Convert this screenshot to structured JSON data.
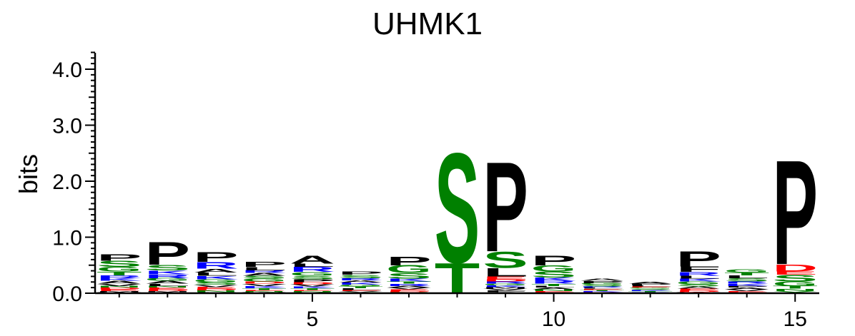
{
  "chart_data": {
    "type": "sequence-logo",
    "title": "UHMK1",
    "ylabel": "bits",
    "xlabel": "",
    "ylim": [
      0,
      4.3
    ],
    "y_ticks": [
      "0.0",
      "1.0",
      "2.0",
      "3.0",
      "4.0"
    ],
    "y_tick_values": [
      0,
      1,
      2,
      3,
      4
    ],
    "x_ticks": [
      "5",
      "10",
      "15"
    ],
    "x_tick_values": [
      5,
      10,
      15
    ],
    "x_range": [
      0.5,
      15.5
    ],
    "colors": {
      "P": "#000000",
      "A": "#000000",
      "L": "#000000",
      "F": "#000000",
      "V": "#000000",
      "M": "#000000",
      "I": "#000000",
      "W": "#000000",
      "S": "#008000",
      "T": "#008000",
      "G": "#008000",
      "Y": "#008000",
      "C": "#008000",
      "Q": "#008000",
      "N": "#008000",
      "R": "#0000ff",
      "K": "#0000ff",
      "H": "#0000ff",
      "D": "#ff0000",
      "E": "#ff0000"
    },
    "positions": [
      {
        "pos": 1,
        "letters": [
          [
            "W",
            0.02
          ],
          [
            "M",
            0.02
          ],
          [
            "E",
            0.03
          ],
          [
            "D",
            0.03
          ],
          [
            "N",
            0.03
          ],
          [
            "V",
            0.04
          ],
          [
            "A",
            0.05
          ],
          [
            "K",
            0.05
          ],
          [
            "R",
            0.05
          ],
          [
            "T",
            0.07
          ],
          [
            "G",
            0.08
          ],
          [
            "S",
            0.11
          ],
          [
            "P",
            0.12
          ]
        ]
      },
      {
        "pos": 2,
        "letters": [
          [
            "I",
            0.02
          ],
          [
            "M",
            0.02
          ],
          [
            "D",
            0.03
          ],
          [
            "E",
            0.03
          ],
          [
            "N",
            0.03
          ],
          [
            "L",
            0.04
          ],
          [
            "A",
            0.05
          ],
          [
            "G",
            0.05
          ],
          [
            "R",
            0.07
          ],
          [
            "K",
            0.07
          ],
          [
            "S",
            0.1
          ],
          [
            "P",
            0.42
          ]
        ]
      },
      {
        "pos": 3,
        "letters": [
          [
            "F",
            0.02
          ],
          [
            "N",
            0.03
          ],
          [
            "D",
            0.03
          ],
          [
            "E",
            0.03
          ],
          [
            "V",
            0.04
          ],
          [
            "S",
            0.05
          ],
          [
            "G",
            0.05
          ],
          [
            "K",
            0.06
          ],
          [
            "L",
            0.06
          ],
          [
            "A",
            0.07
          ],
          [
            "R",
            0.12
          ],
          [
            "P",
            0.18
          ]
        ]
      },
      {
        "pos": 4,
        "letters": [
          [
            "W",
            0.02
          ],
          [
            "N",
            0.02
          ],
          [
            "E",
            0.02
          ],
          [
            "T",
            0.03
          ],
          [
            "K",
            0.04
          ],
          [
            "V",
            0.04
          ],
          [
            "D",
            0.04
          ],
          [
            "G",
            0.05
          ],
          [
            "S",
            0.05
          ],
          [
            "A",
            0.05
          ],
          [
            "R",
            0.05
          ],
          [
            "L",
            0.06
          ],
          [
            "P",
            0.09
          ]
        ]
      },
      {
        "pos": 5,
        "letters": [
          [
            "Y",
            0.02
          ],
          [
            "N",
            0.02
          ],
          [
            "E",
            0.02
          ],
          [
            "T",
            0.03
          ],
          [
            "K",
            0.03
          ],
          [
            "V",
            0.04
          ],
          [
            "D",
            0.04
          ],
          [
            "P",
            0.05
          ],
          [
            "S",
            0.06
          ],
          [
            "G",
            0.07
          ],
          [
            "R",
            0.09
          ],
          [
            "L",
            0.06
          ],
          [
            "A",
            0.14
          ]
        ]
      },
      {
        "pos": 6,
        "letters": [
          [
            "Y",
            0.02
          ],
          [
            "V",
            0.02
          ],
          [
            "E",
            0.02
          ],
          [
            "L",
            0.03
          ],
          [
            "T",
            0.03
          ],
          [
            "G",
            0.03
          ],
          [
            "K",
            0.04
          ],
          [
            "A",
            0.04
          ],
          [
            "R",
            0.04
          ],
          [
            "S",
            0.06
          ],
          [
            "P",
            0.06
          ]
        ]
      },
      {
        "pos": 7,
        "letters": [
          [
            "N",
            0.02
          ],
          [
            "D",
            0.02
          ],
          [
            "E",
            0.03
          ],
          [
            "V",
            0.03
          ],
          [
            "A",
            0.03
          ],
          [
            "R",
            0.04
          ],
          [
            "T",
            0.04
          ],
          [
            "K",
            0.05
          ],
          [
            "S",
            0.1
          ],
          [
            "G",
            0.14
          ],
          [
            "P",
            0.16
          ]
        ]
      },
      {
        "pos": 8,
        "letters": [
          [
            "T",
            0.55
          ],
          [
            "S",
            2.02
          ]
        ]
      },
      {
        "pos": 9,
        "letters": [
          [
            "A",
            0.02
          ],
          [
            "F",
            0.03
          ],
          [
            "V",
            0.03
          ],
          [
            "M",
            0.03
          ],
          [
            "K",
            0.03
          ],
          [
            "G",
            0.03
          ],
          [
            "R",
            0.04
          ],
          [
            "D",
            0.04
          ],
          [
            "E",
            0.05
          ],
          [
            "L",
            0.15
          ],
          [
            "S",
            0.3
          ],
          [
            "P",
            1.65
          ]
        ]
      },
      {
        "pos": 10,
        "letters": [
          [
            "D",
            0.02
          ],
          [
            "E",
            0.02
          ],
          [
            "N",
            0.03
          ],
          [
            "A",
            0.03
          ],
          [
            "L",
            0.03
          ],
          [
            "T",
            0.04
          ],
          [
            "R",
            0.05
          ],
          [
            "K",
            0.06
          ],
          [
            "S",
            0.11
          ],
          [
            "G",
            0.11
          ],
          [
            "P",
            0.18
          ]
        ]
      },
      {
        "pos": 11,
        "letters": [
          [
            "D",
            0.02
          ],
          [
            "K",
            0.02
          ],
          [
            "T",
            0.02
          ],
          [
            "E",
            0.02
          ],
          [
            "L",
            0.02
          ],
          [
            "R",
            0.02
          ],
          [
            "S",
            0.03
          ],
          [
            "G",
            0.03
          ],
          [
            "P",
            0.04
          ],
          [
            "A",
            0.04
          ]
        ]
      },
      {
        "pos": 12,
        "letters": [
          [
            "R",
            0.02
          ],
          [
            "T",
            0.02
          ],
          [
            "K",
            0.02
          ],
          [
            "S",
            0.02
          ],
          [
            "G",
            0.02
          ],
          [
            "E",
            0.02
          ],
          [
            "L",
            0.02
          ],
          [
            "P",
            0.03
          ],
          [
            "A",
            0.03
          ]
        ]
      },
      {
        "pos": 13,
        "letters": [
          [
            "W",
            0.02
          ],
          [
            "D",
            0.03
          ],
          [
            "E",
            0.03
          ],
          [
            "A",
            0.04
          ],
          [
            "S",
            0.04
          ],
          [
            "G",
            0.05
          ],
          [
            "K",
            0.05
          ],
          [
            "L",
            0.05
          ],
          [
            "R",
            0.07
          ],
          [
            "F",
            0.1
          ],
          [
            "P",
            0.28
          ]
        ]
      },
      {
        "pos": 14,
        "letters": [
          [
            "D",
            0.02
          ],
          [
            "E",
            0.02
          ],
          [
            "V",
            0.03
          ],
          [
            "A",
            0.03
          ],
          [
            "P",
            0.03
          ],
          [
            "K",
            0.04
          ],
          [
            "R",
            0.04
          ],
          [
            "S",
            0.06
          ],
          [
            "L",
            0.05
          ],
          [
            "T",
            0.05
          ],
          [
            "G",
            0.06
          ]
        ]
      },
      {
        "pos": 15,
        "letters": [
          [
            "Y",
            0.04
          ],
          [
            "N",
            0.04
          ],
          [
            "T",
            0.05
          ],
          [
            "G",
            0.08
          ],
          [
            "S",
            0.12
          ],
          [
            "E",
            0.06
          ],
          [
            "D",
            0.13
          ],
          [
            "P",
            1.92
          ]
        ]
      }
    ]
  }
}
